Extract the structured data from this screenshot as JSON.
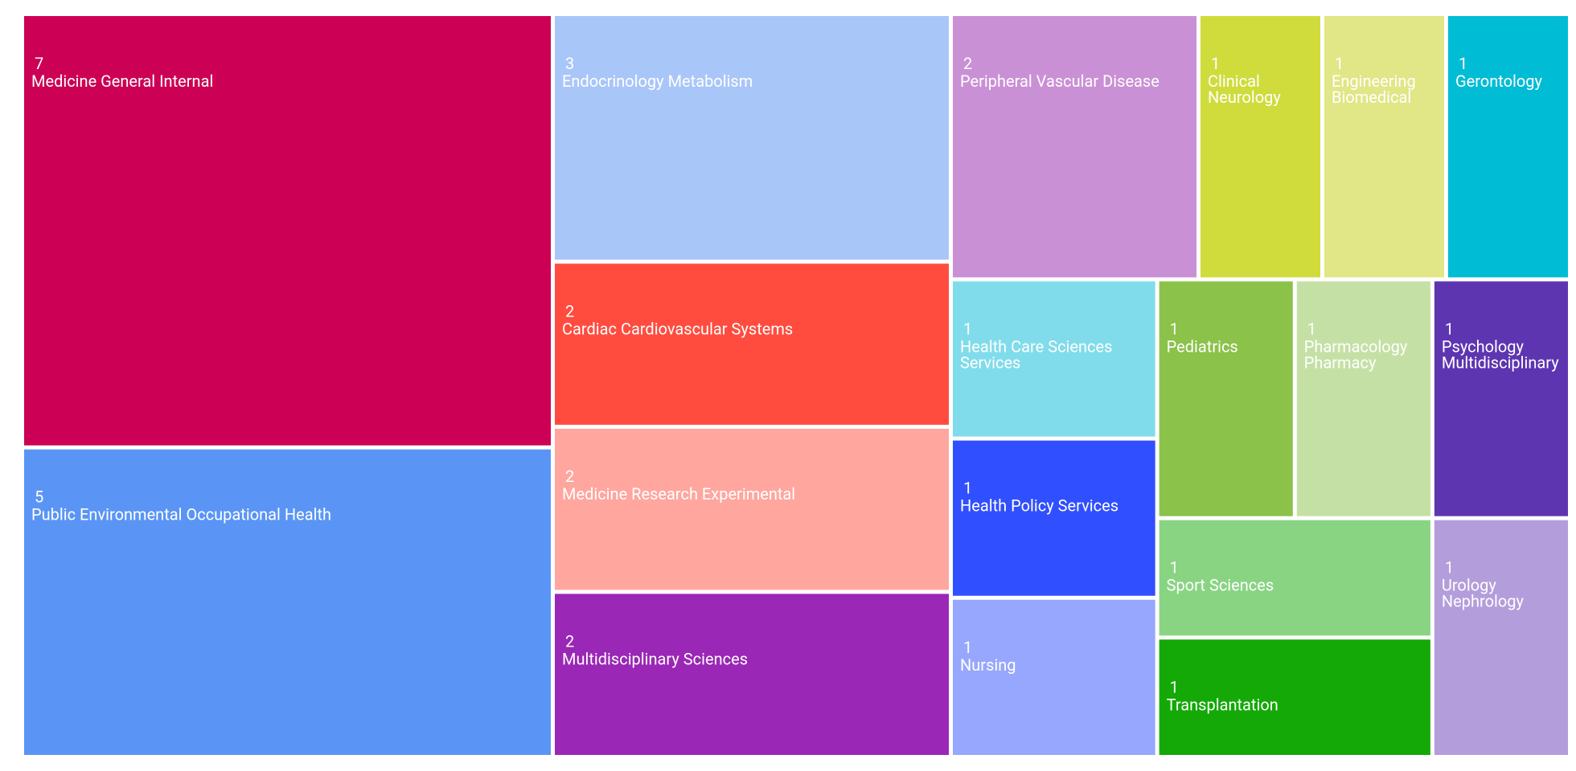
{
  "chart_data": {
    "type": "treemap",
    "categories": [
      "Medicine General Internal",
      "Public Environmental Occupational Health",
      "Endocrinology Metabolism",
      "Cardiac Cardiovascular Systems",
      "Medicine Research Experimental",
      "Multidisciplinary Sciences",
      "Peripheral Vascular Disease",
      "Clinical Neurology",
      "Engineering Biomedical",
      "Gerontology",
      "Health Care Sciences Services",
      "Health Policy Services",
      "Nursing",
      "Pediatrics",
      "Pharmacology Pharmacy",
      "Psychology Multidisciplinary",
      "Sport Sciences",
      "Transplantation",
      "Urology Nephrology"
    ],
    "values": [
      7,
      5,
      3,
      2,
      2,
      2,
      2,
      1,
      1,
      1,
      1,
      1,
      1,
      1,
      1,
      1,
      1,
      1,
      1
    ],
    "colors": [
      "#cc0055",
      "#5a95f5",
      "#a9c6f9",
      "#ff4c3e",
      "#ffa69e",
      "#9a27b5",
      "#ca90d5",
      "#cfdc3c",
      "#e1e686",
      "#00bcd5",
      "#80dceb",
      "#304ffe",
      "#97a7fd",
      "#8bc24a",
      "#c5e0a5",
      "#5e35b1",
      "#89d483",
      "#14a906",
      "#b39ddb"
    ]
  }
}
